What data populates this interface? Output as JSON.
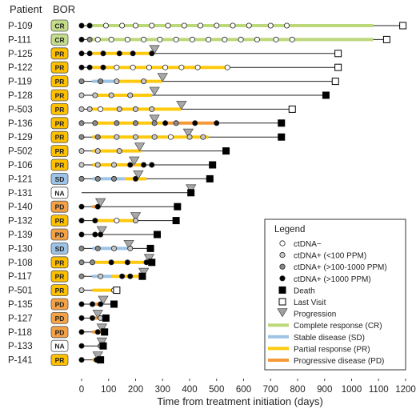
{
  "chart_data": {
    "type": "swimmer",
    "header_patient": "Patient",
    "header_bor": "BOR",
    "xlabel": "Time from treatment initiation (days)",
    "xlim": [
      0,
      1200
    ],
    "xticks": [
      0,
      100,
      200,
      300,
      400,
      500,
      600,
      700,
      800,
      900,
      1000,
      1100,
      1200
    ],
    "response_colors": {
      "CR": "#c5dd8a",
      "SD": "#9dc3e6",
      "PR": "#ffc000",
      "PD": "#f4a245",
      "NA": "#ffffff"
    },
    "segment_colors": {
      "CR": "#bcd87a",
      "SD": "#9dc3e6",
      "PR": "#ffc90e",
      "PD": "#f59a3a"
    },
    "marker_colors": {
      "neg": "#ffffff",
      "low": "#c8c8c8",
      "mid": "#8a8a8a",
      "high": "#000000"
    },
    "patients": [
      {
        "id": "P-109",
        "bor": "CR",
        "end": 1190,
        "end_type": "visit",
        "segments": [
          [
            0,
            20,
            "none"
          ],
          [
            20,
            1080,
            "CR"
          ],
          [
            1080,
            1190,
            "none"
          ]
        ],
        "markers": [
          [
            0,
            "high"
          ],
          [
            30,
            "high"
          ],
          [
            90,
            "neg"
          ],
          [
            150,
            "neg"
          ],
          [
            200,
            "neg"
          ],
          [
            260,
            "neg"
          ],
          [
            320,
            "neg"
          ],
          [
            380,
            "neg"
          ],
          [
            440,
            "neg"
          ],
          [
            500,
            "neg"
          ],
          [
            560,
            "neg"
          ],
          [
            620,
            "neg"
          ],
          [
            700,
            "neg"
          ],
          [
            760,
            "neg"
          ]
        ],
        "progression": null
      },
      {
        "id": "P-111",
        "bor": "CR",
        "end": 1130,
        "end_type": "visit",
        "segments": [
          [
            0,
            20,
            "none"
          ],
          [
            20,
            1080,
            "CR"
          ],
          [
            1080,
            1130,
            "none"
          ]
        ],
        "markers": [
          [
            0,
            "high"
          ],
          [
            30,
            "mid"
          ],
          [
            60,
            "neg"
          ],
          [
            110,
            "neg"
          ],
          [
            170,
            "neg"
          ],
          [
            230,
            "neg"
          ],
          [
            290,
            "neg"
          ],
          [
            350,
            "neg"
          ],
          [
            410,
            "neg"
          ],
          [
            470,
            "neg"
          ],
          [
            530,
            "neg"
          ],
          [
            590,
            "neg"
          ],
          [
            650,
            "neg"
          ],
          [
            720,
            "neg"
          ],
          [
            780,
            "neg"
          ]
        ],
        "progression": null
      },
      {
        "id": "P-125",
        "bor": "PR",
        "end": 950,
        "end_type": "visit",
        "segments": [
          [
            0,
            40,
            "none"
          ],
          [
            40,
            260,
            "PR"
          ],
          [
            260,
            950,
            "none"
          ]
        ],
        "markers": [
          [
            0,
            "high"
          ],
          [
            30,
            "high"
          ],
          [
            80,
            "high"
          ],
          [
            140,
            "high"
          ],
          [
            190,
            "high"
          ],
          [
            260,
            "high"
          ]
        ],
        "progression": 270
      },
      {
        "id": "P-122",
        "bor": "PR",
        "end": 950,
        "end_type": "visit",
        "segments": [
          [
            0,
            40,
            "none"
          ],
          [
            40,
            540,
            "PR"
          ],
          [
            540,
            950,
            "none"
          ]
        ],
        "markers": [
          [
            0,
            "high"
          ],
          [
            30,
            "high"
          ],
          [
            80,
            "high"
          ],
          [
            130,
            "neg"
          ],
          [
            190,
            "neg"
          ],
          [
            250,
            "neg"
          ],
          [
            310,
            "neg"
          ],
          [
            370,
            "neg"
          ],
          [
            430,
            "neg"
          ],
          [
            540,
            "neg"
          ]
        ],
        "progression": null
      },
      {
        "id": "P-119",
        "bor": "PR",
        "end": 940,
        "end_type": "visit",
        "segments": [
          [
            0,
            40,
            "none"
          ],
          [
            40,
            130,
            "SD"
          ],
          [
            130,
            300,
            "PR"
          ],
          [
            300,
            940,
            "none"
          ]
        ],
        "markers": [
          [
            0,
            "mid"
          ],
          [
            70,
            "mid"
          ],
          [
            130,
            "low"
          ],
          [
            230,
            "low"
          ]
        ],
        "progression": 300
      },
      {
        "id": "P-128",
        "bor": "PR",
        "end": 905,
        "end_type": "death",
        "segments": [
          [
            0,
            40,
            "none"
          ],
          [
            40,
            260,
            "PR"
          ],
          [
            260,
            905,
            "none"
          ]
        ],
        "markers": [
          [
            0,
            "low"
          ],
          [
            50,
            "low"
          ],
          [
            110,
            "low"
          ],
          [
            180,
            "low"
          ]
        ],
        "progression": 270
      },
      {
        "id": "P-503",
        "bor": "PR",
        "end": 780,
        "end_type": "visit",
        "segments": [
          [
            0,
            40,
            "none"
          ],
          [
            40,
            370,
            "PR"
          ],
          [
            370,
            780,
            "none"
          ]
        ],
        "markers": [
          [
            0,
            "low"
          ],
          [
            30,
            "low"
          ],
          [
            70,
            "neg"
          ],
          [
            140,
            "low"
          ],
          [
            200,
            "low"
          ],
          [
            260,
            "low"
          ]
        ],
        "progression": 370
      },
      {
        "id": "P-136",
        "bor": "PR",
        "end": 740,
        "end_type": "death",
        "segments": [
          [
            0,
            40,
            "none"
          ],
          [
            40,
            300,
            "PR"
          ],
          [
            300,
            500,
            "PD"
          ],
          [
            500,
            740,
            "none"
          ]
        ],
        "markers": [
          [
            0,
            "mid"
          ],
          [
            50,
            "mid"
          ],
          [
            130,
            "mid"
          ],
          [
            200,
            "mid"
          ],
          [
            270,
            "mid"
          ],
          [
            310,
            "high"
          ],
          [
            350,
            "mid"
          ],
          [
            420,
            "high"
          ],
          [
            500,
            "high"
          ]
        ],
        "progression": 270
      },
      {
        "id": "P-129",
        "bor": "PR",
        "end": 740,
        "end_type": "death",
        "segments": [
          [
            0,
            40,
            "none"
          ],
          [
            40,
            470,
            "PR"
          ],
          [
            470,
            740,
            "none"
          ]
        ],
        "markers": [
          [
            0,
            "mid"
          ],
          [
            60,
            "mid"
          ],
          [
            130,
            "low"
          ],
          [
            200,
            "low"
          ],
          [
            270,
            "low"
          ],
          [
            330,
            "neg"
          ],
          [
            400,
            "low"
          ],
          [
            450,
            "low"
          ]
        ],
        "progression": 395
      },
      {
        "id": "P-502",
        "bor": "PR",
        "end": 535,
        "end_type": "death",
        "segments": [
          [
            0,
            40,
            "none"
          ],
          [
            40,
            220,
            "PR"
          ],
          [
            220,
            535,
            "none"
          ]
        ],
        "markers": [
          [
            0,
            "low"
          ],
          [
            60,
            "low"
          ],
          [
            140,
            "low"
          ]
        ],
        "progression": 215
      },
      {
        "id": "P-106",
        "bor": "PR",
        "end": 485,
        "end_type": "death",
        "segments": [
          [
            0,
            40,
            "none"
          ],
          [
            40,
            230,
            "PR"
          ],
          [
            230,
            485,
            "none"
          ]
        ],
        "markers": [
          [
            0,
            "low"
          ],
          [
            60,
            "low"
          ],
          [
            120,
            "low"
          ],
          [
            180,
            "high"
          ],
          [
            230,
            "high"
          ],
          [
            260,
            "high"
          ]
        ],
        "progression": 195
      },
      {
        "id": "P-121",
        "bor": "SD",
        "end": 475,
        "end_type": "death",
        "segments": [
          [
            0,
            40,
            "none"
          ],
          [
            40,
            160,
            "SD"
          ],
          [
            160,
            240,
            "PR"
          ],
          [
            240,
            475,
            "none"
          ]
        ],
        "markers": [
          [
            0,
            "mid"
          ],
          [
            60,
            "mid"
          ],
          [
            120,
            "mid"
          ],
          [
            200,
            "high"
          ]
        ],
        "progression": 210
      },
      {
        "id": "P-131",
        "bor": "NA",
        "end": 405,
        "end_type": "death",
        "segments": [
          [
            0,
            405,
            "none"
          ]
        ],
        "markers": [],
        "progression": 405
      },
      {
        "id": "P-140",
        "bor": "PD",
        "end": 355,
        "end_type": "death",
        "segments": [
          [
            0,
            40,
            "none"
          ],
          [
            40,
            70,
            "PD"
          ],
          [
            70,
            355,
            "none"
          ]
        ],
        "markers": [
          [
            0,
            "high"
          ],
          [
            60,
            "high"
          ]
        ],
        "progression": 70
      },
      {
        "id": "P-132",
        "bor": "PR",
        "end": 350,
        "end_type": "death",
        "segments": [
          [
            0,
            40,
            "none"
          ],
          [
            40,
            200,
            "PR"
          ],
          [
            200,
            350,
            "none"
          ]
        ],
        "markers": [
          [
            0,
            "high"
          ],
          [
            50,
            "high"
          ],
          [
            130,
            "neg"
          ],
          [
            200,
            "low"
          ]
        ],
        "progression": 200
      },
      {
        "id": "P-139",
        "bor": "PD",
        "end": 280,
        "end_type": "death",
        "segments": [
          [
            0,
            40,
            "none"
          ],
          [
            40,
            80,
            "PD"
          ],
          [
            80,
            280,
            "none"
          ]
        ],
        "markers": [
          [
            0,
            "high"
          ],
          [
            50,
            "high"
          ],
          [
            70,
            "high"
          ]
        ],
        "progression": 75
      },
      {
        "id": "P-130",
        "bor": "SD",
        "end": 255,
        "end_type": "death",
        "segments": [
          [
            0,
            40,
            "none"
          ],
          [
            40,
            170,
            "SD"
          ],
          [
            170,
            255,
            "none"
          ]
        ],
        "markers": [
          [
            0,
            "mid"
          ],
          [
            60,
            "mid"
          ],
          [
            120,
            "low"
          ],
          [
            180,
            "low"
          ]
        ],
        "progression": 175
      },
      {
        "id": "P-108",
        "bor": "PR",
        "end": 260,
        "end_type": "death",
        "segments": [
          [
            0,
            40,
            "none"
          ],
          [
            40,
            250,
            "PR"
          ],
          [
            250,
            260,
            "none"
          ]
        ],
        "markers": [
          [
            0,
            "mid"
          ],
          [
            40,
            "mid"
          ],
          [
            110,
            "high"
          ],
          [
            170,
            "high"
          ],
          [
            240,
            "high"
          ]
        ],
        "progression": 250
      },
      {
        "id": "P-117",
        "bor": "PR",
        "end": 225,
        "end_type": "death",
        "segments": [
          [
            0,
            40,
            "none"
          ],
          [
            40,
            110,
            "SD"
          ],
          [
            110,
            225,
            "PR"
          ]
        ],
        "markers": [
          [
            0,
            "mid"
          ],
          [
            70,
            "low"
          ],
          [
            150,
            "high"
          ],
          [
            180,
            "high"
          ]
        ],
        "progression": 230
      },
      {
        "id": "P-501",
        "bor": "PR",
        "end": 130,
        "end_type": "visit",
        "segments": [
          [
            0,
            40,
            "none"
          ],
          [
            40,
            120,
            "PR"
          ],
          [
            120,
            130,
            "none"
          ]
        ],
        "markers": [
          [
            0,
            "low"
          ],
          [
            120,
            "neg"
          ]
        ],
        "progression": null
      },
      {
        "id": "P-135",
        "bor": "PD",
        "end": 120,
        "end_type": "death",
        "segments": [
          [
            0,
            40,
            "none"
          ],
          [
            40,
            80,
            "PD"
          ],
          [
            80,
            120,
            "none"
          ]
        ],
        "markers": [
          [
            0,
            "high"
          ],
          [
            40,
            "high"
          ],
          [
            70,
            "high"
          ]
        ],
        "progression": 80
      },
      {
        "id": "P-127",
        "bor": "PD",
        "end": 90,
        "end_type": "death",
        "segments": [
          [
            0,
            40,
            "none"
          ],
          [
            40,
            90,
            "PD"
          ]
        ],
        "markers": [
          [
            0,
            "high"
          ],
          [
            40,
            "high"
          ],
          [
            70,
            "low"
          ]
        ],
        "progression": 60
      },
      {
        "id": "P-118",
        "bor": "PD",
        "end": 85,
        "end_type": "death",
        "segments": [
          [
            0,
            40,
            "none"
          ],
          [
            40,
            80,
            "PD"
          ]
        ],
        "markers": [
          [
            0,
            "high"
          ],
          [
            60,
            "high"
          ]
        ],
        "progression": 75
      },
      {
        "id": "P-133",
        "bor": "NA",
        "end": 80,
        "end_type": "death",
        "segments": [
          [
            0,
            80,
            "none"
          ]
        ],
        "markers": [
          [
            0,
            "high"
          ],
          [
            70,
            "mid"
          ]
        ],
        "progression": 75
      },
      {
        "id": "P-141",
        "bor": "PR",
        "end": 70,
        "end_type": "death",
        "segments": [
          [
            0,
            40,
            "none"
          ],
          [
            40,
            70,
            "PR"
          ]
        ],
        "markers": [
          [
            0,
            "high"
          ],
          [
            55,
            "high"
          ]
        ],
        "progression": 60
      }
    ],
    "legend": {
      "title": "Legend",
      "items": [
        {
          "kind": "circle",
          "fill": "#ffffff",
          "label": "ctDNA−"
        },
        {
          "kind": "circle",
          "fill": "#c8c8c8",
          "label": "ctDNA+ (<100 PPM)"
        },
        {
          "kind": "circle",
          "fill": "#8a8a8a",
          "label": "ctDNA+ (>100-1000 PPM)"
        },
        {
          "kind": "circle",
          "fill": "#000000",
          "label": "ctDNA+ (>1000 PPM)"
        },
        {
          "kind": "square",
          "fill": "#000000",
          "label": "Death"
        },
        {
          "kind": "square",
          "fill": "#ffffff",
          "label": "Last Visit"
        },
        {
          "kind": "triangle",
          "fill": "#a0a0a0",
          "label": "Progression"
        },
        {
          "kind": "line",
          "fill": "#bcd87a",
          "label": "Complete response (CR)"
        },
        {
          "kind": "line",
          "fill": "#9dc3e6",
          "label": "Stable disease (SD)"
        },
        {
          "kind": "line",
          "fill": "#ffc90e",
          "label": "Partial response (PR)"
        },
        {
          "kind": "line",
          "fill": "#f59a3a",
          "label": "Progressive disease (PD)"
        }
      ]
    }
  }
}
